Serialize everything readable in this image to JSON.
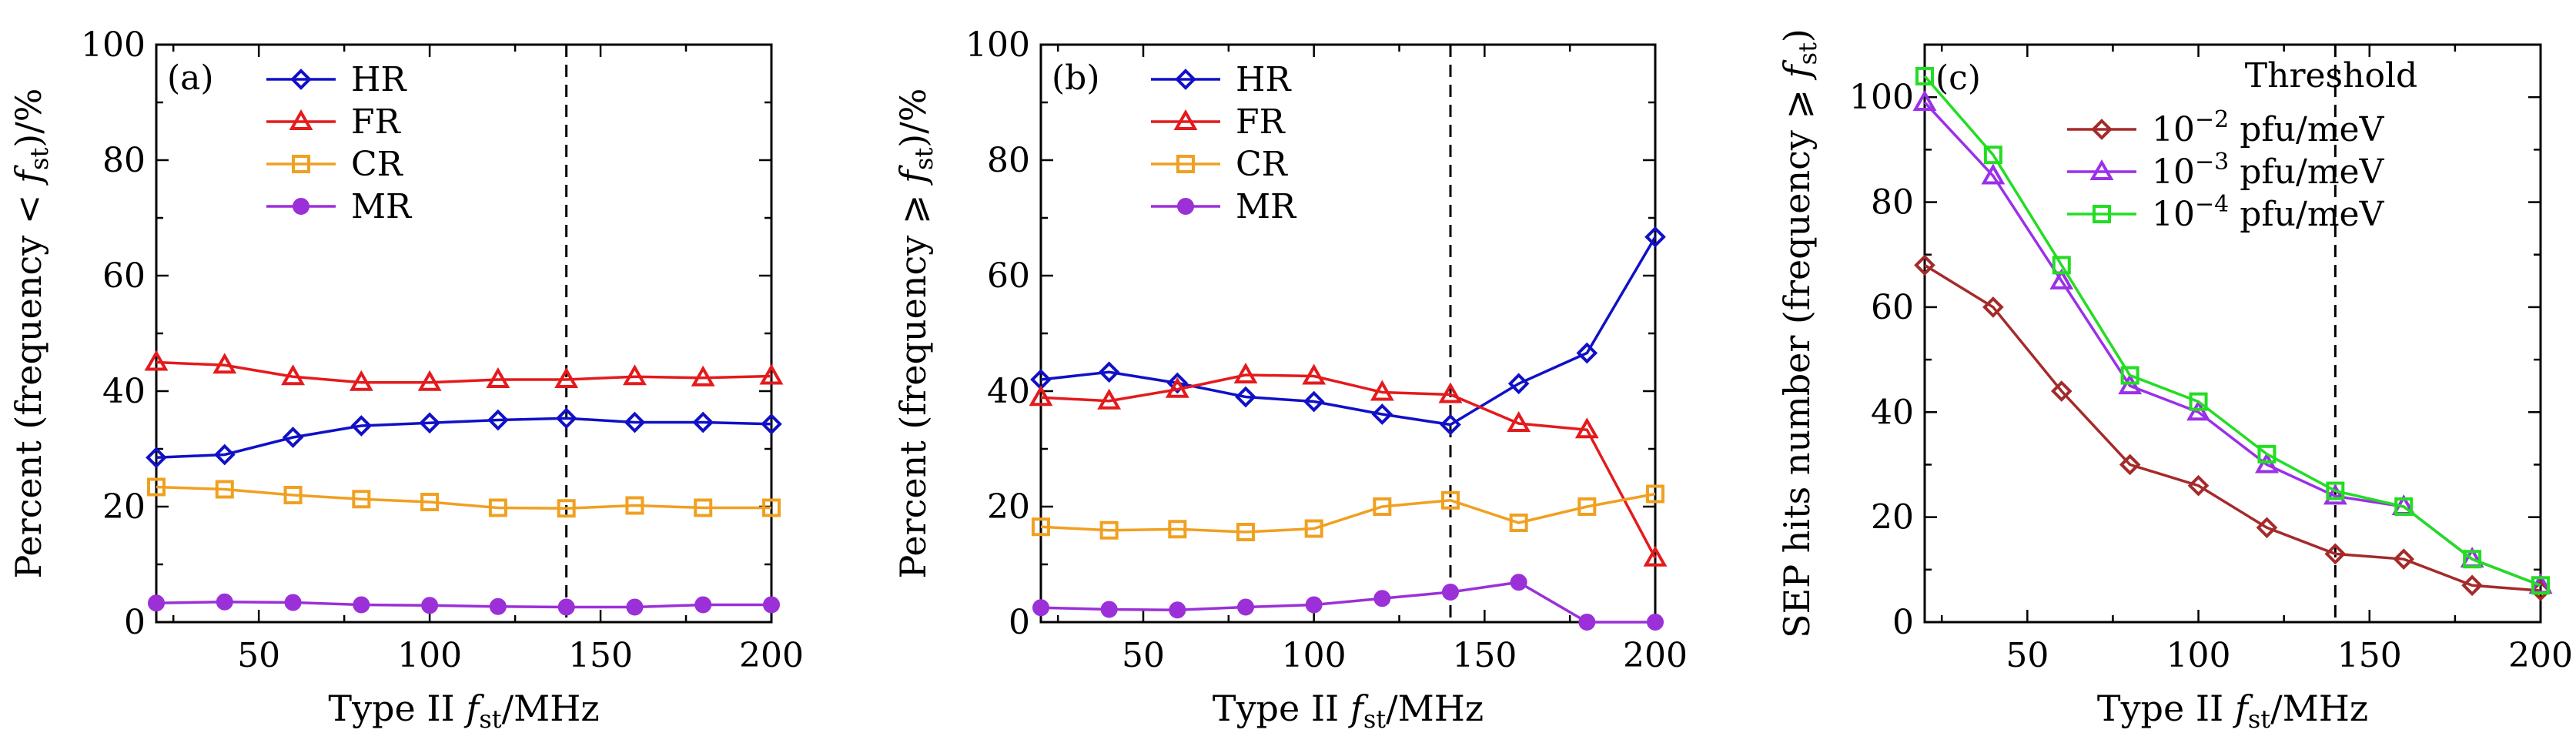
{
  "chart_data": [
    {
      "type": "line",
      "panel_label": "(a)",
      "xlabel": "Type II f_st/MHz",
      "ylabel": "Percent (frequency < f_st)/%",
      "xlim": [
        20,
        200
      ],
      "ylim": [
        0,
        100
      ],
      "xticks": [
        50,
        100,
        150,
        200
      ],
      "yticks": [
        0,
        20,
        40,
        60,
        80,
        100
      ],
      "vline_x": 140,
      "legend_position": "top-left",
      "x": [
        20,
        40,
        60,
        80,
        100,
        120,
        140,
        160,
        180,
        200
      ],
      "series": [
        {
          "name": "HR",
          "color": "#1010c8",
          "marker": "diamond",
          "values": [
            28.5,
            29,
            32,
            34,
            34.5,
            35,
            35.3,
            34.6,
            34.6,
            34.3
          ]
        },
        {
          "name": "FR",
          "color": "#e41a1c",
          "marker": "triangle",
          "values": [
            45,
            44.5,
            42.5,
            41.5,
            41.5,
            42,
            42,
            42.5,
            42.3,
            42.6
          ]
        },
        {
          "name": "CR",
          "color": "#f0a020",
          "marker": "square",
          "values": [
            23.4,
            23,
            22,
            21.3,
            20.8,
            19.8,
            19.7,
            20.2,
            19.8,
            19.8
          ]
        },
        {
          "name": "MR",
          "color": "#9b30d8",
          "marker": "circle",
          "values": [
            3.3,
            3.5,
            3.4,
            3,
            2.9,
            2.7,
            2.6,
            2.6,
            3,
            3
          ]
        }
      ]
    },
    {
      "type": "line",
      "panel_label": "(b)",
      "xlabel": "Type II f_st/MHz",
      "ylabel": "Percent (frequency ⩾ f_st)/%",
      "xlim": [
        20,
        200
      ],
      "ylim": [
        0,
        100
      ],
      "xticks": [
        50,
        100,
        150,
        200
      ],
      "yticks": [
        0,
        20,
        40,
        60,
        80,
        100
      ],
      "vline_x": 140,
      "legend_position": "top-left",
      "x": [
        20,
        40,
        60,
        80,
        100,
        120,
        140,
        160,
        180,
        200
      ],
      "series": [
        {
          "name": "HR",
          "color": "#1010c8",
          "marker": "diamond",
          "values": [
            42,
            43.3,
            41.4,
            39,
            38.2,
            36,
            34.2,
            41.3,
            46.6,
            66.7
          ]
        },
        {
          "name": "FR",
          "color": "#e41a1c",
          "marker": "triangle",
          "values": [
            38.9,
            38.3,
            40.3,
            42.8,
            42.6,
            39.8,
            39.4,
            34.4,
            33.3,
            11.1
          ]
        },
        {
          "name": "CR",
          "color": "#f0a020",
          "marker": "square",
          "values": [
            16.5,
            15.9,
            16.1,
            15.6,
            16.2,
            20,
            21.1,
            17.2,
            20,
            22.2
          ]
        },
        {
          "name": "MR",
          "color": "#9b30d8",
          "marker": "circle",
          "values": [
            2.5,
            2.2,
            2.1,
            2.6,
            3,
            4.1,
            5.2,
            6.9,
            0,
            0
          ]
        }
      ]
    },
    {
      "type": "line",
      "panel_label": "(c)",
      "xlabel": "Type II f_st/MHz",
      "ylabel": "SEP hits number (frequency ⩾ f_st)",
      "xlim": [
        20,
        200
      ],
      "ylim": [
        0,
        110
      ],
      "xticks": [
        50,
        100,
        150,
        200
      ],
      "yticks": [
        0,
        20,
        40,
        60,
        80,
        100
      ],
      "vline_x": 140,
      "legend_title": "Threshold",
      "legend_position": "top-right",
      "x": [
        20,
        40,
        60,
        80,
        100,
        120,
        140,
        160,
        180,
        200
      ],
      "series": [
        {
          "name": "10−2 pfu/meV",
          "exp": "−2",
          "color": "#a52a2a",
          "marker": "diamond",
          "values": [
            68,
            60,
            44,
            30,
            26,
            18,
            13,
            12,
            7,
            6
          ]
        },
        {
          "name": "10−3 pfu/meV",
          "exp": "−3",
          "color": "#9b30e8",
          "marker": "triangle",
          "values": [
            99,
            85,
            65,
            45,
            40,
            30,
            24,
            22,
            12,
            7
          ]
        },
        {
          "name": "10−4 pfu/meV",
          "exp": "−4",
          "color": "#22dd22",
          "marker": "square",
          "values": [
            104,
            89,
            68,
            47,
            42,
            32,
            25,
            22,
            12,
            7
          ]
        }
      ]
    }
  ]
}
